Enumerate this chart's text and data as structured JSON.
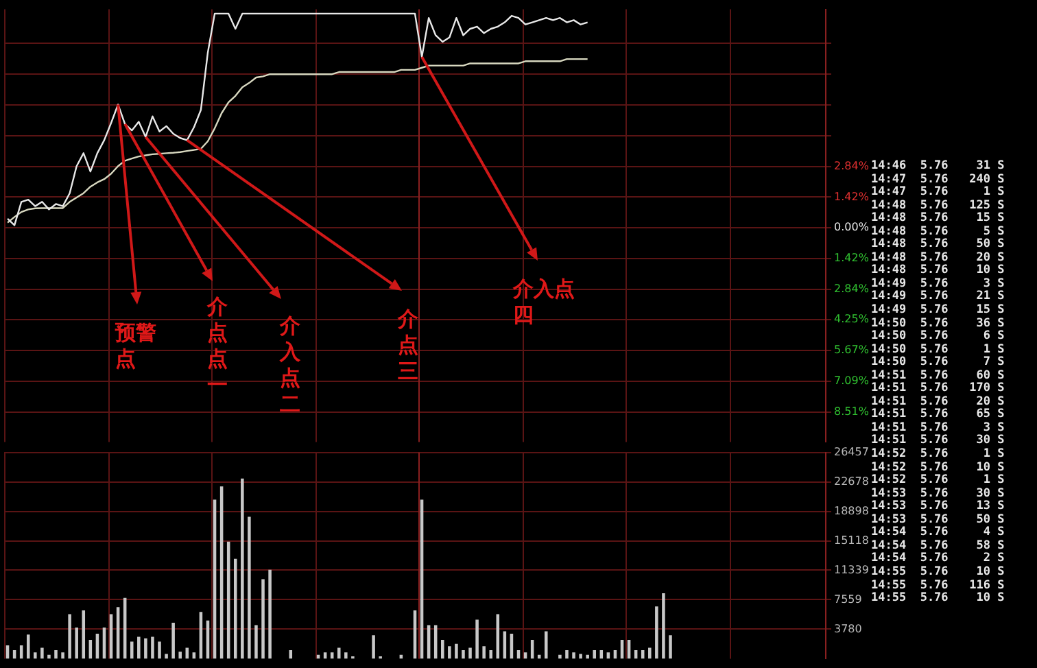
{
  "chart_data": [
    {
      "type": "line",
      "categories": [
        null,
        null,
        null,
        null,
        null,
        null,
        null,
        null,
        null,
        null,
        null,
        null,
        null,
        null,
        null,
        null,
        null,
        null,
        null,
        null,
        null,
        null,
        null,
        null,
        null,
        null,
        null,
        null,
        null,
        null,
        null,
        null,
        null,
        null,
        null,
        null,
        null,
        null,
        null,
        null,
        null,
        null,
        null,
        null,
        null,
        null,
        null,
        null,
        null,
        null,
        null,
        null,
        null,
        null,
        null,
        null,
        null,
        null,
        null,
        null,
        null,
        null,
        null,
        null,
        null,
        null,
        null,
        null,
        null,
        null,
        null,
        null,
        null,
        null,
        null,
        null,
        null,
        null,
        null,
        null,
        null,
        null,
        null,
        null,
        null,
        null,
        null,
        null,
        null,
        null,
        null,
        null,
        null,
        null,
        null,
        null,
        null,
        null,
        null,
        null,
        null,
        null,
        null,
        null,
        null,
        null,
        null,
        null,
        null,
        null,
        null,
        null,
        null,
        null,
        null,
        null,
        null,
        null,
        null
      ],
      "series": [
        {
          "color": "#e8e8e8",
          "values": [
            0.42,
            0.12,
            1.2,
            1.3,
            1.0,
            1.2,
            0.85,
            1.1,
            1.0,
            1.6,
            2.85,
            3.45,
            2.6,
            3.45,
            4.05,
            4.85,
            5.7,
            4.8,
            4.5,
            4.9,
            4.2,
            5.15,
            4.45,
            4.7,
            4.35,
            4.15,
            4.05,
            4.65,
            5.45,
            8.1,
            9.9,
            9.9,
            9.9,
            9.2,
            9.9,
            9.9,
            9.9,
            9.9,
            9.9,
            9.9,
            9.9,
            9.9,
            9.9,
            9.9,
            9.9,
            9.9,
            9.9,
            9.9,
            9.9,
            9.9,
            9.9,
            9.9,
            9.9,
            9.9,
            9.9,
            9.9,
            9.9,
            9.9,
            9.9,
            9.9,
            7.9,
            9.7,
            8.9,
            8.6,
            8.8,
            9.7,
            8.9,
            9.2,
            9.3,
            9.0,
            9.2,
            9.3,
            9.5,
            9.8,
            9.7,
            9.4,
            9.5,
            9.6,
            9.7,
            9.6,
            9.7,
            9.5,
            9.6,
            9.4,
            9.5,
            null,
            null,
            null,
            null,
            null,
            null,
            null,
            null,
            null,
            null,
            null,
            null,
            null,
            null,
            null,
            null,
            null,
            null,
            null,
            null,
            null,
            null,
            null,
            null,
            null,
            null,
            null,
            null,
            null,
            null,
            null,
            null,
            null,
            null
          ]
        },
        {
          "color": "#d8d8c0",
          "values": [
            0.24,
            0.5,
            0.73,
            0.85,
            0.9,
            0.91,
            0.91,
            0.91,
            0.91,
            1.2,
            1.4,
            1.6,
            1.9,
            2.1,
            2.25,
            2.5,
            2.85,
            3.1,
            3.2,
            3.3,
            3.35,
            3.4,
            3.42,
            3.45,
            3.47,
            3.5,
            3.55,
            3.6,
            3.65,
            4.0,
            4.6,
            5.3,
            5.8,
            6.1,
            6.5,
            6.7,
            6.95,
            7.0,
            7.1,
            7.1,
            7.1,
            7.1,
            7.1,
            7.1,
            7.1,
            7.1,
            7.1,
            7.1,
            7.2,
            7.2,
            7.2,
            7.2,
            7.2,
            7.2,
            7.2,
            7.2,
            7.2,
            7.3,
            7.3,
            7.3,
            7.4,
            7.5,
            7.5,
            7.5,
            7.5,
            7.5,
            7.5,
            7.6,
            7.6,
            7.6,
            7.6,
            7.6,
            7.6,
            7.6,
            7.6,
            7.7,
            7.7,
            7.7,
            7.7,
            7.7,
            7.7,
            7.8,
            7.8,
            7.8,
            7.8,
            null,
            null,
            null,
            null,
            null,
            null,
            null,
            null,
            null,
            null,
            null,
            null,
            null,
            null,
            null,
            null,
            null,
            null,
            null,
            null,
            null,
            null,
            null,
            null,
            null,
            null,
            null,
            null,
            null,
            null,
            null,
            null,
            null,
            null
          ]
        }
      ],
      "ylim": [
        -9.9,
        10.1
      ],
      "yticks": [
        {
          "value": 8.52,
          "label": null
        },
        {
          "value": 7.1,
          "label": null
        },
        {
          "value": 5.68,
          "label": null
        },
        {
          "value": 4.26,
          "label": null
        },
        {
          "value": 2.84,
          "label": "2.84%"
        },
        {
          "value": 1.42,
          "label": "1.42%"
        },
        {
          "value": 0,
          "label": "0.00%"
        },
        {
          "value": -1.42,
          "label": "1.42%"
        },
        {
          "value": -2.84,
          "label": "2.84%"
        },
        {
          "value": -4.25,
          "label": "4.25%"
        },
        {
          "value": -5.67,
          "label": "5.67%"
        },
        {
          "value": -7.09,
          "label": "7.09%"
        },
        {
          "value": -8.51,
          "label": "8.51%"
        }
      ],
      "grid": true,
      "marker": "none",
      "line_style": "solid",
      "annotations": [
        "预警点",
        "介点点一",
        "介入点二",
        "介点三",
        "介入点四"
      ]
    },
    {
      "type": "bar",
      "categories": [
        null,
        null,
        null,
        null,
        null,
        null,
        null,
        null,
        null,
        null,
        null,
        null,
        null,
        null,
        null,
        null,
        null,
        null,
        null,
        null,
        null,
        null,
        null,
        null,
        null,
        null,
        null,
        null,
        null,
        null,
        null,
        null,
        null,
        null,
        null,
        null,
        null,
        null,
        null,
        null,
        null,
        null,
        null,
        null,
        null,
        null,
        null,
        null,
        null,
        null,
        null,
        null,
        null,
        null,
        null,
        null,
        null,
        null,
        null,
        null,
        null,
        null,
        null,
        null,
        null,
        null,
        null,
        null,
        null,
        null,
        null,
        null,
        null,
        null,
        null,
        null,
        null,
        null,
        null,
        null,
        null,
        null,
        null,
        null,
        null,
        null,
        null,
        null,
        null,
        null,
        null,
        null,
        null,
        null,
        null,
        null,
        null,
        null,
        null,
        null,
        null,
        null,
        null,
        null,
        null,
        null,
        null,
        null,
        null,
        null,
        null,
        null,
        null,
        null,
        null,
        null,
        null,
        null,
        null
      ],
      "color": "#c8c8c8",
      "values": [
        1700,
        1100,
        1700,
        3100,
        800,
        1400,
        500,
        1100,
        800,
        5700,
        4000,
        6200,
        2400,
        3200,
        4000,
        5700,
        6600,
        7800,
        2200,
        2800,
        2600,
        2800,
        2200,
        600,
        4600,
        900,
        1400,
        800,
        6000,
        4900,
        20400,
        22100,
        15000,
        12800,
        23100,
        18200,
        4300,
        10200,
        11400,
        null,
        null,
        1100,
        null,
        null,
        null,
        500,
        800,
        800,
        1400,
        800,
        300,
        null,
        null,
        3000,
        300,
        null,
        null,
        500,
        null,
        6200,
        20400,
        4300,
        4300,
        2400,
        1600,
        1900,
        1100,
        1400,
        5000,
        1600,
        1100,
        5700,
        3500,
        3200,
        1100,
        800,
        2400,
        500,
        3500,
        null,
        500,
        1100,
        800,
        600,
        500,
        1100,
        1100,
        800,
        1100,
        2400,
        2400,
        1100,
        1100,
        1400,
        6700,
        8400,
        3000,
        null,
        null,
        null,
        null,
        null,
        null,
        null,
        null,
        null,
        null,
        null,
        null,
        null,
        null,
        null,
        null,
        null,
        null,
        null,
        null,
        null,
        null
      ],
      "ylim": [
        0,
        26457
      ],
      "yticks": [
        26457,
        22678,
        18898,
        15118,
        11339,
        7559,
        3780
      ],
      "grid": true
    },
    {
      "type": "other",
      "annotations": [
        "14:46 5.76 31 S",
        "14:47 5.76 240 S",
        "14:47 5.76 1 S",
        "14:48 5.76 125 S",
        "14:48 5.76 15 S",
        "14:48 5.76 5 S",
        "14:48 5.76 50 S",
        "14:48 5.76 20 S",
        "14:48 5.76 10 S",
        "14:49 5.76 3 S",
        "14:49 5.76 21 S",
        "14:49 5.76 15 S",
        "14:50 5.76 36 S",
        "14:50 5.76 6 S",
        "14:50 5.76 1 S",
        "14:50 5.76 7 S",
        "14:51 5.76 60 S",
        "14:51 5.76 170 S",
        "14:51 5.76 20 S",
        "14:51 5.76 65 S",
        "14:51 5.76 3 S",
        "14:51 5.76 30 S",
        "14:52 5.76 1 S",
        "14:52 5.76 10 S",
        "14:52 5.76 1 S",
        "14:53 5.76 30 S",
        "14:53 5.76 13 S",
        "14:53 5.76 50 S",
        "14:54 5.76 4 S",
        "14:54 5.76 58 S",
        "14:54 5.76 2 S",
        "14:55 5.76 10 S",
        "14:55 5.76 116 S",
        "14:55 5.76 10 S"
      ]
    }
  ]
}
